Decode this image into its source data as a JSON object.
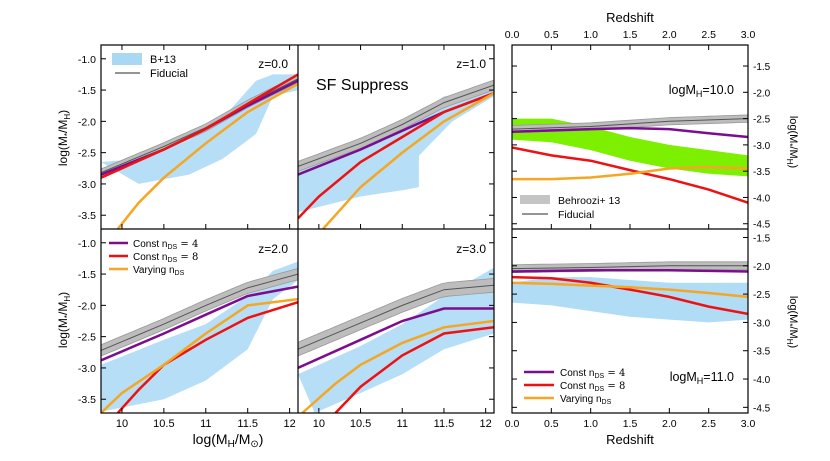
{
  "colors": {
    "purple": "#7b0d8e",
    "red": "#ee1111",
    "orange": "#f5a623",
    "lightblue": "#a9d8f5",
    "green": "#7cf000",
    "gray": "#bdbdbd",
    "fiducial": "#555555"
  },
  "chart_data": {
    "type": "line",
    "left_panels": {
      "xlabel": "log(M_H/M_⊙)",
      "ylabel": "log(M_*/M_H)",
      "xlim": [
        9.75,
        12.1
      ],
      "ylim": [
        -3.72,
        -0.78
      ],
      "xticks": [
        "10",
        "10.5",
        "11",
        "11.5",
        "12"
      ],
      "xtick_values": [
        10,
        10.5,
        11,
        11.5,
        12
      ],
      "yticks_top": [
        "-1.0",
        "-1.5",
        "-2.0",
        "-2.5",
        "-3.0",
        "-3.5"
      ],
      "yticks_bottom": [
        "-1.0",
        "-1.5",
        "-2.0",
        "-2.5",
        "-3.0",
        "-3.5"
      ],
      "ytick_values": [
        -1.0,
        -1.5,
        -2.0,
        -2.5,
        -3.0,
        -3.5
      ],
      "panels": [
        {
          "label": "z=0.0",
          "band_upper": [
            [
              9.75,
              -2.65
            ],
            [
              10.2,
              -2.6
            ],
            [
              10.8,
              -2.3
            ],
            [
              11.2,
              -1.95
            ],
            [
              11.6,
              -1.35
            ],
            [
              11.8,
              -1.25
            ],
            [
              12.1,
              -1.25
            ]
          ],
          "band_lower": [
            [
              10.2,
              -3.0
            ],
            [
              10.8,
              -2.85
            ],
            [
              11.2,
              -2.6
            ],
            [
              11.6,
              -2.2
            ],
            [
              11.8,
              -1.6
            ],
            [
              12.1,
              -1.5
            ]
          ],
          "fiducial": [
            [
              9.75,
              -2.82
            ],
            [
              10.5,
              -2.4
            ],
            [
              11.0,
              -2.1
            ],
            [
              11.5,
              -1.72
            ],
            [
              12.1,
              -1.32
            ]
          ],
          "fid_width": 0.06,
          "purple": [
            [
              9.75,
              -2.85
            ],
            [
              10.5,
              -2.45
            ],
            [
              11.0,
              -2.12
            ],
            [
              11.5,
              -1.75
            ],
            [
              12.1,
              -1.35
            ]
          ],
          "red": [
            [
              9.75,
              -2.9
            ],
            [
              10.5,
              -2.45
            ],
            [
              11.0,
              -2.12
            ],
            [
              11.5,
              -1.72
            ],
            [
              12.1,
              -1.25
            ]
          ],
          "orange": [
            [
              9.95,
              -3.72
            ],
            [
              10.2,
              -3.3
            ],
            [
              10.5,
              -2.9
            ],
            [
              11.0,
              -2.35
            ],
            [
              11.5,
              -1.85
            ],
            [
              12.1,
              -1.4
            ]
          ]
        },
        {
          "label": "z=1.0",
          "band_upper": [
            [
              9.75,
              -2.65
            ],
            [
              10.5,
              -2.35
            ],
            [
              11.0,
              -2.1
            ],
            [
              11.5,
              -1.6
            ],
            [
              12.1,
              -1.5
            ]
          ],
          "band_lower": [
            [
              9.75,
              -3.45
            ],
            [
              10.5,
              -3.2
            ],
            [
              11.0,
              -3.1
            ],
            [
              11.2,
              -3.05
            ],
            [
              11.2,
              -2.55
            ],
            [
              11.6,
              -2.0
            ],
            [
              12.1,
              -1.6
            ]
          ],
          "fiducial": [
            [
              9.75,
              -2.72
            ],
            [
              10.5,
              -2.35
            ],
            [
              11.0,
              -2.05
            ],
            [
              11.5,
              -1.7
            ],
            [
              12.1,
              -1.42
            ]
          ],
          "fid_width": 0.08,
          "purple": [
            [
              9.75,
              -2.85
            ],
            [
              10.5,
              -2.45
            ],
            [
              11.0,
              -2.15
            ],
            [
              11.5,
              -1.85
            ],
            [
              12.1,
              -1.55
            ]
          ],
          "red": [
            [
              9.75,
              -3.55
            ],
            [
              10.0,
              -3.2
            ],
            [
              10.5,
              -2.65
            ],
            [
              11.0,
              -2.25
            ],
            [
              11.5,
              -1.85
            ],
            [
              12.1,
              -1.55
            ]
          ],
          "orange": [
            [
              10.05,
              -3.72
            ],
            [
              10.5,
              -3.05
            ],
            [
              11.0,
              -2.5
            ],
            [
              11.5,
              -2.0
            ],
            [
              12.1,
              -1.55
            ]
          ]
        },
        {
          "label": "z=2.0",
          "band_upper": [
            [
              9.75,
              -2.95
            ],
            [
              10.5,
              -2.55
            ],
            [
              11.0,
              -2.3
            ],
            [
              11.5,
              -1.85
            ],
            [
              11.8,
              -1.45
            ],
            [
              12.1,
              -1.3
            ]
          ],
          "band_lower": [
            [
              9.75,
              -3.7
            ],
            [
              10.5,
              -3.5
            ],
            [
              11.0,
              -3.2
            ],
            [
              11.5,
              -2.7
            ],
            [
              11.8,
              -1.9
            ],
            [
              12.1,
              -1.6
            ]
          ],
          "fiducial": [
            [
              9.75,
              -2.72
            ],
            [
              10.5,
              -2.3
            ],
            [
              11.0,
              -2.0
            ],
            [
              11.5,
              -1.72
            ],
            [
              12.1,
              -1.5
            ]
          ],
          "fid_width": 0.09,
          "purple": [
            [
              9.75,
              -2.88
            ],
            [
              10.5,
              -2.45
            ],
            [
              11.0,
              -2.15
            ],
            [
              11.5,
              -1.85
            ],
            [
              12.1,
              -1.7
            ]
          ],
          "red": [
            [
              9.95,
              -3.72
            ],
            [
              10.2,
              -3.35
            ],
            [
              10.5,
              -2.95
            ],
            [
              11.0,
              -2.55
            ],
            [
              11.5,
              -2.2
            ],
            [
              12.1,
              -1.95
            ]
          ],
          "orange": [
            [
              9.75,
              -3.72
            ],
            [
              10.0,
              -3.4
            ],
            [
              10.5,
              -2.95
            ],
            [
              11.0,
              -2.45
            ],
            [
              11.5,
              -2.0
            ],
            [
              12.1,
              -1.9
            ]
          ]
        },
        {
          "label": "z=3.0",
          "band_upper": [
            [
              9.75,
              -3.1
            ],
            [
              10.5,
              -2.65
            ],
            [
              11.0,
              -2.3
            ],
            [
              11.5,
              -1.85
            ],
            [
              12.1,
              -1.4
            ]
          ],
          "band_lower": [
            [
              9.95,
              -3.72
            ],
            [
              10.5,
              -3.4
            ],
            [
              11.0,
              -3.1
            ],
            [
              11.5,
              -2.7
            ],
            [
              12.1,
              -2.45
            ]
          ],
          "fiducial": [
            [
              9.75,
              -2.7
            ],
            [
              10.5,
              -2.28
            ],
            [
              11.0,
              -2.0
            ],
            [
              11.5,
              -1.75
            ],
            [
              12.1,
              -1.68
            ]
          ],
          "fid_width": 0.11,
          "purple": [
            [
              9.75,
              -3.0
            ],
            [
              10.5,
              -2.55
            ],
            [
              11.0,
              -2.25
            ],
            [
              11.5,
              -2.05
            ],
            [
              12.1,
              -2.05
            ]
          ],
          "red": [
            [
              10.2,
              -3.72
            ],
            [
              10.5,
              -3.3
            ],
            [
              11.0,
              -2.8
            ],
            [
              11.5,
              -2.45
            ],
            [
              12.1,
              -2.35
            ]
          ],
          "orange": [
            [
              9.8,
              -3.72
            ],
            [
              10.2,
              -3.25
            ],
            [
              10.5,
              -2.95
            ],
            [
              11.0,
              -2.6
            ],
            [
              11.5,
              -2.35
            ],
            [
              12.1,
              -2.25
            ]
          ]
        }
      ]
    },
    "right_panels": {
      "xlabel": "Redshift",
      "xlabel_top": "Redshift",
      "ylabel": "log(M_*/M_H)",
      "xlim": [
        0.0,
        3.0
      ],
      "xticks": [
        "0.0",
        "0.5",
        "1.0",
        "1.5",
        "2.0",
        "2.5",
        "3.0"
      ],
      "xtick_values": [
        0.0,
        0.5,
        1.0,
        1.5,
        2.0,
        2.5,
        3.0
      ],
      "top": {
        "label": "logM_H=10.0",
        "ylim": [
          -4.6,
          -1.1
        ],
        "yticks": [
          "-1.5",
          "-2.0",
          "-2.5",
          "-3.0",
          "-3.5",
          "-4.0",
          "-4.5"
        ],
        "ytick_values": [
          -1.5,
          -2.0,
          -2.5,
          -3.0,
          -3.5,
          -4.0,
          -4.5
        ],
        "green_upper": [
          [
            0.0,
            -2.5
          ],
          [
            0.5,
            -2.5
          ],
          [
            1.0,
            -2.65
          ],
          [
            1.5,
            -2.85
          ],
          [
            2.0,
            -3.0
          ],
          [
            2.5,
            -3.1
          ],
          [
            3.0,
            -3.2
          ]
        ],
        "green_lower": [
          [
            0.0,
            -2.9
          ],
          [
            0.5,
            -2.95
          ],
          [
            1.0,
            -3.1
          ],
          [
            1.5,
            -3.3
          ],
          [
            2.0,
            -3.45
          ],
          [
            2.5,
            -3.55
          ],
          [
            3.0,
            -3.6
          ]
        ],
        "fiducial": [
          [
            0.0,
            -2.7
          ],
          [
            1.0,
            -2.65
          ],
          [
            2.0,
            -2.55
          ],
          [
            3.0,
            -2.5
          ]
        ],
        "fid_width": 0.07,
        "purple": [
          [
            0.0,
            -2.75
          ],
          [
            1.0,
            -2.7
          ],
          [
            1.5,
            -2.68
          ],
          [
            2.0,
            -2.7
          ],
          [
            2.5,
            -2.78
          ],
          [
            3.0,
            -2.85
          ]
        ],
        "red": [
          [
            0.0,
            -3.05
          ],
          [
            0.5,
            -3.2
          ],
          [
            1.0,
            -3.3
          ],
          [
            1.5,
            -3.48
          ],
          [
            2.0,
            -3.65
          ],
          [
            2.5,
            -3.85
          ],
          [
            3.0,
            -4.1
          ]
        ],
        "orange": [
          [
            0.0,
            -3.65
          ],
          [
            0.5,
            -3.65
          ],
          [
            1.0,
            -3.62
          ],
          [
            1.5,
            -3.55
          ],
          [
            2.0,
            -3.45
          ],
          [
            2.5,
            -3.42
          ],
          [
            3.0,
            -3.45
          ]
        ]
      },
      "bottom": {
        "label": "logM_H=11.0",
        "ylim": [
          -4.6,
          -1.35
        ],
        "yticks": [
          "-1.5",
          "-2.0",
          "-2.5",
          "-3.0",
          "-3.5",
          "-4.0",
          "-4.5"
        ],
        "ytick_values": [
          -1.5,
          -2.0,
          -2.5,
          -3.0,
          -3.5,
          -4.0,
          -4.5
        ],
        "band_upper": [
          [
            0.0,
            -2.3
          ],
          [
            0.5,
            -2.2
          ],
          [
            1.0,
            -2.2
          ],
          [
            1.5,
            -2.25
          ],
          [
            2.0,
            -2.3
          ],
          [
            2.5,
            -2.3
          ],
          [
            3.0,
            -2.3
          ]
        ],
        "band_lower": [
          [
            0.0,
            -2.65
          ],
          [
            0.5,
            -2.7
          ],
          [
            1.0,
            -2.8
          ],
          [
            1.5,
            -2.9
          ],
          [
            2.0,
            -2.95
          ],
          [
            2.5,
            -3.0
          ],
          [
            3.0,
            -2.95
          ]
        ],
        "fiducial": [
          [
            0.0,
            -2.05
          ],
          [
            1.0,
            -2.03
          ],
          [
            2.0,
            -2.0
          ],
          [
            3.0,
            -2.0
          ]
        ],
        "fid_width": 0.07,
        "purple": [
          [
            0.0,
            -2.1
          ],
          [
            1.0,
            -2.08
          ],
          [
            2.0,
            -2.08
          ],
          [
            3.0,
            -2.1
          ]
        ],
        "red": [
          [
            0.0,
            -2.2
          ],
          [
            0.5,
            -2.22
          ],
          [
            1.0,
            -2.3
          ],
          [
            1.5,
            -2.42
          ],
          [
            2.0,
            -2.55
          ],
          [
            2.5,
            -2.72
          ],
          [
            3.0,
            -2.85
          ]
        ],
        "orange": [
          [
            0.0,
            -2.3
          ],
          [
            0.5,
            -2.32
          ],
          [
            1.0,
            -2.35
          ],
          [
            1.5,
            -2.38
          ],
          [
            2.0,
            -2.42
          ],
          [
            2.5,
            -2.48
          ],
          [
            3.0,
            -2.55
          ]
        ]
      }
    },
    "annotation": "SF Suppress",
    "legend_top_left": [
      "B+13",
      "Fiducial"
    ],
    "legend_bottom_left": [
      "Const n_DS = 4",
      "Const n_DS = 8",
      "Varying n_DS"
    ],
    "legend_right_top": [
      "Behroozi+ 13",
      "Fiducial"
    ],
    "legend_right_bottom": [
      "Const n_DS = 4",
      "Const n_DS = 8",
      "Varying n_DS"
    ]
  },
  "labels": {
    "left_xlabel_main": "log(M",
    "left_xlabel_sub": "H",
    "left_xlabel_mid": "/M",
    "left_xlabel_sun": "⊙",
    "left_xlabel_end": ")",
    "ylabel_main": "log(M",
    "ylabel_star": "*",
    "ylabel_mid": "/M",
    "ylabel_h": "H",
    "ylabel_end": ")",
    "right_top_xlabel": "Redshift",
    "right_bottom_xlabel": "Redshift",
    "sf_suppress": "SF Suppress",
    "z0": "z=0.0",
    "z1": "z=1.0",
    "z2": "z=2.0",
    "z3": "z=3.0",
    "logmh10_main": "logM",
    "logmh10_sub": "H",
    "logmh10_val": "=10.0",
    "logmh11_main": "logM",
    "logmh11_sub": "H",
    "logmh11_val": "=11.0",
    "leg_b13": "B+13",
    "leg_fid": "Fiducial",
    "leg_const": "Const n",
    "leg_ds": "DS",
    "leg_eq4": " = 4",
    "leg_eq8": " = 8",
    "leg_vary": "Varying n",
    "leg_behroozi": "Behroozi+ 13"
  }
}
